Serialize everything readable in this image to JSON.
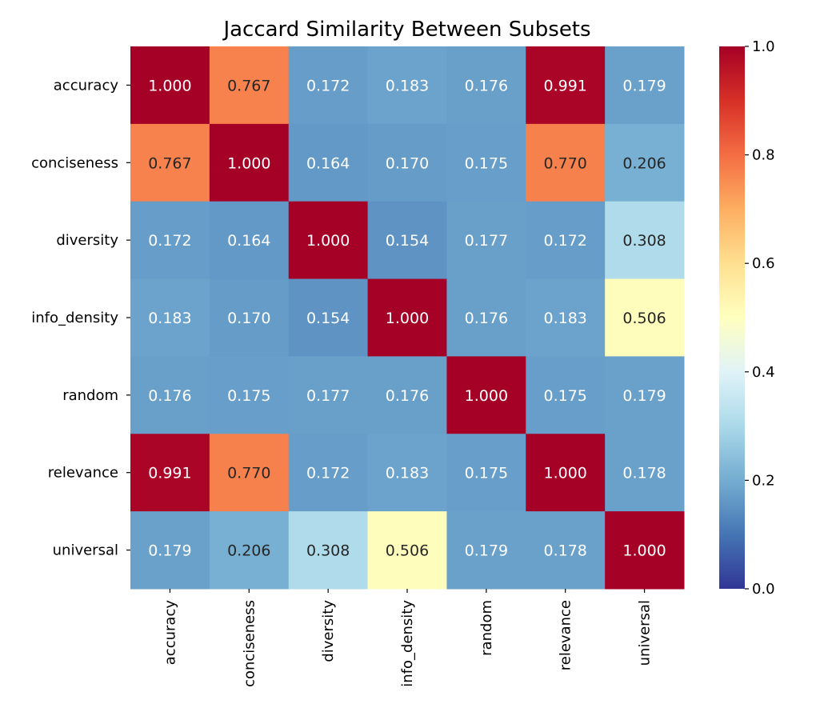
{
  "chart_data": {
    "type": "heatmap",
    "title": "Jaccard Similarity Between Subsets",
    "xlabel": "",
    "ylabel": "",
    "x_categories": [
      "accuracy",
      "conciseness",
      "diversity",
      "info_density",
      "random",
      "relevance",
      "universal"
    ],
    "y_categories": [
      "accuracy",
      "conciseness",
      "diversity",
      "info_density",
      "random",
      "relevance",
      "universal"
    ],
    "values": [
      [
        1.0,
        0.767,
        0.172,
        0.183,
        0.176,
        0.991,
        0.179
      ],
      [
        0.767,
        1.0,
        0.164,
        0.17,
        0.175,
        0.77,
        0.206
      ],
      [
        0.172,
        0.164,
        1.0,
        0.154,
        0.177,
        0.172,
        0.308
      ],
      [
        0.183,
        0.17,
        0.154,
        1.0,
        0.176,
        0.183,
        0.506
      ],
      [
        0.176,
        0.175,
        0.177,
        0.176,
        1.0,
        0.175,
        0.179
      ],
      [
        0.991,
        0.77,
        0.172,
        0.183,
        0.175,
        1.0,
        0.178
      ],
      [
        0.179,
        0.206,
        0.308,
        0.506,
        0.179,
        0.178,
        1.0
      ]
    ],
    "value_format": "3 decimals",
    "colormap": "RdYlBu_r",
    "colormap_stops": [
      "#313695",
      "#4575b4",
      "#74add1",
      "#abd9e9",
      "#e0f3f8",
      "#ffffbf",
      "#fee090",
      "#fdae61",
      "#f46d43",
      "#d73027",
      "#a50026"
    ],
    "vmin": 0.0,
    "vmax": 1.0,
    "colorbar": {
      "ticks": [
        "0.0",
        "0.2",
        "0.4",
        "0.6",
        "0.8",
        "1.0"
      ],
      "placement": "right"
    },
    "annotation_colors": {
      "light_text": "#ffffff",
      "dark_text": "#262626"
    },
    "grid": false
  }
}
